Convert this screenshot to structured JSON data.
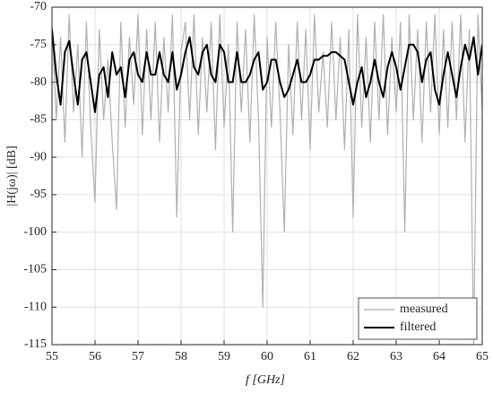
{
  "chart_data": {
    "type": "line",
    "xlabel": "f [GHz]",
    "ylabel": "|H(jω)| [dB]",
    "x": [
      55.0,
      55.1,
      55.2,
      55.3,
      55.4,
      55.5,
      55.6,
      55.7,
      55.8,
      55.9,
      56.0,
      56.1,
      56.2,
      56.3,
      56.4,
      56.5,
      56.6,
      56.7,
      56.8,
      56.9,
      57.0,
      57.1,
      57.2,
      57.3,
      57.4,
      57.5,
      57.6,
      57.7,
      57.8,
      57.9,
      58.0,
      58.1,
      58.2,
      58.3,
      58.4,
      58.5,
      58.6,
      58.7,
      58.8,
      58.9,
      59.0,
      59.1,
      59.2,
      59.3,
      59.4,
      59.5,
      59.6,
      59.7,
      59.8,
      59.9,
      60.0,
      60.1,
      60.2,
      60.3,
      60.4,
      60.5,
      60.6,
      60.7,
      60.8,
      60.9,
      61.0,
      61.1,
      61.2,
      61.3,
      61.4,
      61.5,
      61.6,
      61.7,
      61.8,
      61.9,
      62.0,
      62.1,
      62.2,
      62.3,
      62.4,
      62.5,
      62.6,
      62.7,
      62.8,
      62.9,
      63.0,
      63.1,
      63.2,
      63.3,
      63.4,
      63.5,
      63.6,
      63.7,
      63.8,
      63.9,
      64.0,
      64.1,
      64.2,
      64.3,
      64.4,
      64.5,
      64.6,
      64.7,
      64.8,
      64.9,
      65.0
    ],
    "series": [
      {
        "name": "measured",
        "color": "#b0b0b0",
        "width": 1.2,
        "values": [
          -72,
          -85,
          -74,
          -88,
          -71,
          -84,
          -75,
          -90,
          -72,
          -86,
          -96,
          -73,
          -85,
          -77,
          -88,
          -97,
          -72,
          -86,
          -74,
          -83,
          -71,
          -87,
          -73,
          -85,
          -72,
          -88,
          -74,
          -84,
          -71,
          -98,
          -76,
          -72,
          -85,
          -71,
          -87,
          -74,
          -84,
          -72,
          -89,
          -71,
          -86,
          -75,
          -100,
          -72,
          -84,
          -73,
          -88,
          -71,
          -85,
          -110,
          -74,
          -86,
          -72,
          -84,
          -100,
          -75,
          -87,
          -72,
          -85,
          -73,
          -89,
          -71,
          -84,
          -76,
          -86,
          -72,
          -85,
          -74,
          -89,
          -73,
          -98,
          -71,
          -86,
          -74,
          -88,
          -72,
          -85,
          -71,
          -87,
          -74,
          -84,
          -72,
          -100,
          -71,
          -85,
          -73,
          -88,
          -72,
          -84,
          -71,
          -87,
          -73,
          -86,
          -72,
          -85,
          -71,
          -88,
          -73,
          -115,
          -71,
          -84
        ]
      },
      {
        "name": "filtered",
        "color": "#000000",
        "width": 2,
        "values": [
          -73,
          -79,
          -83,
          -76,
          -74.5,
          -79,
          -83,
          -77,
          -76,
          -80,
          -84,
          -79,
          -78,
          -82,
          -76,
          -79,
          -78,
          -82,
          -77,
          -76,
          -79,
          -80,
          -76,
          -79,
          -79,
          -76,
          -79,
          -80,
          -76,
          -81,
          -79,
          -76,
          -74,
          -78,
          -79,
          -76,
          -75,
          -79,
          -80,
          -75,
          -76,
          -80,
          -80,
          -76,
          -80,
          -80,
          -79,
          -77,
          -76,
          -81,
          -80,
          -77,
          -77,
          -80,
          -82,
          -81,
          -79,
          -77,
          -80,
          -80,
          -79,
          -77,
          -77,
          -76.5,
          -76.5,
          -76,
          -76,
          -76.5,
          -77,
          -80,
          -83,
          -80,
          -78,
          -82,
          -80,
          -77,
          -80,
          -82,
          -78,
          -76,
          -78,
          -81,
          -78,
          -75,
          -75,
          -76,
          -80,
          -77,
          -76,
          -81,
          -83,
          -79,
          -76,
          -79,
          -82,
          -78,
          -75,
          -77,
          -74,
          -79,
          -75
        ]
      }
    ],
    "xlim": [
      55,
      65
    ],
    "xticks": [
      55,
      56,
      57,
      58,
      59,
      60,
      61,
      62,
      63,
      64,
      65
    ],
    "ylim": [
      -115,
      -70
    ],
    "yticks": [
      -70,
      -75,
      -80,
      -85,
      -90,
      -95,
      -100,
      -105,
      -110,
      -115
    ],
    "grid": true,
    "legend": "lower right"
  }
}
